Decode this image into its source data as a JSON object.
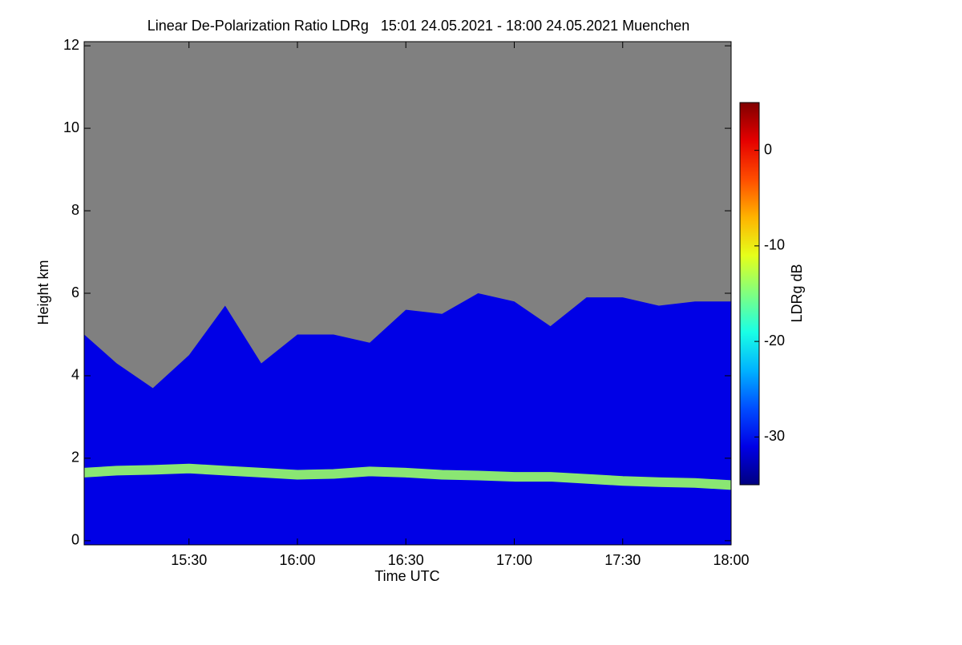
{
  "chart_data": {
    "type": "heatmap",
    "title": "Linear De-Polarization Ratio LDRg   15:01 24.05.2021 - 18:00 24.05.2021 Muenchen",
    "x_label": "Time UTC",
    "y_label": "Height km",
    "colorbar_label": "LDRg dB",
    "x": [
      "15:01",
      "15:10",
      "15:20",
      "15:30",
      "15:40",
      "15:50",
      "16:00",
      "16:10",
      "16:20",
      "16:30",
      "16:40",
      "16:50",
      "17:00",
      "17:10",
      "17:20",
      "17:30",
      "17:40",
      "17:50",
      "18:00"
    ],
    "series": [
      {
        "z": -31,
        "values": [
          5.0,
          4.3,
          3.7,
          4.5,
          5.7,
          4.3,
          5.0,
          5.0,
          4.8,
          5.6,
          5.5,
          6.0,
          5.8,
          5.2,
          5.9,
          5.9,
          5.7,
          5.8,
          5.8
        ]
      },
      {
        "z": -14,
        "values": [
          1.65,
          1.7,
          1.72,
          1.75,
          1.7,
          1.65,
          1.6,
          1.62,
          1.68,
          1.65,
          1.6,
          1.58,
          1.55,
          1.55,
          1.5,
          1.45,
          1.42,
          1.4,
          1.35
        ]
      }
    ],
    "xlim": [
      "15:01",
      "18:00"
    ],
    "xticks": [
      "15:30",
      "16:00",
      "16:30",
      "17:00",
      "17:30",
      "18:00"
    ],
    "ylim": [
      -0.1,
      12.1
    ],
    "yticks": [
      0,
      2,
      4,
      6,
      8,
      10,
      12
    ],
    "zlim": [
      -35,
      5
    ],
    "zticks": [
      -30,
      -20,
      -10,
      0
    ],
    "background": "#808080"
  }
}
